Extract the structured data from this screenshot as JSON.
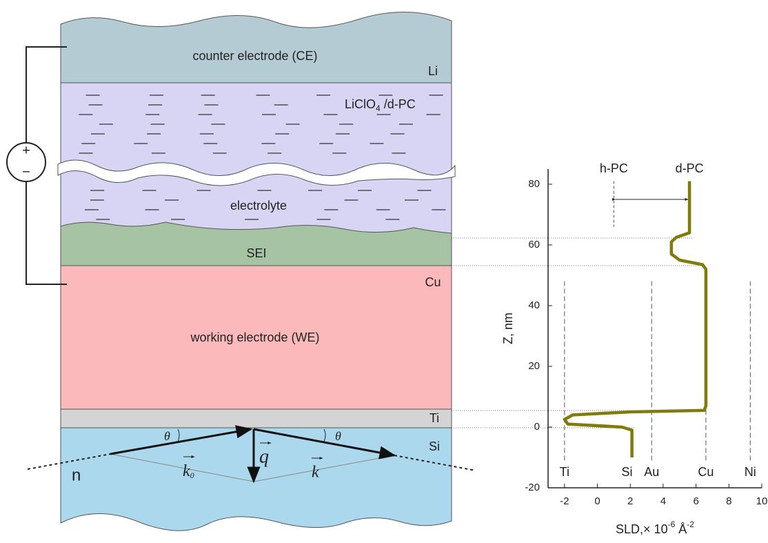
{
  "diagram": {
    "counter_electrode": "counter electrode (CE)",
    "li": "Li",
    "electrolyte_formula": {
      "main": "LiClO",
      "sub": "4",
      "rest": " /d-PC"
    },
    "electrolyte": "electrolyte",
    "sei": "SEI",
    "cu": "Cu",
    "working_electrode": "working electrode (WE)",
    "ti": "Ti",
    "si": "Si",
    "n": "n",
    "theta_left": "θ",
    "theta_right": "θ",
    "plus": "+",
    "minus": "−",
    "k0": {
      "main": "k",
      "sub": "0"
    },
    "q": "q",
    "k": "k"
  },
  "chart_data": {
    "type": "line",
    "xlabel": {
      "main": "SLD,× 10",
      "sup1": "-6",
      "mid": " Å",
      "sup2": "-2"
    },
    "ylabel": "Z, nm",
    "color": "#7f7c0c",
    "x": [
      2.1,
      2.1,
      1.5,
      -1.8,
      -2,
      -1.5,
      2,
      6.5,
      6.6,
      6.6,
      6.4,
      5,
      4.5,
      4.5,
      4.8,
      5.6,
      5.6
    ],
    "values": [
      -10,
      -1,
      0,
      1,
      2.5,
      4,
      5,
      5.5,
      7,
      52,
      53.5,
      55,
      57,
      61,
      62.5,
      64,
      81
    ],
    "xlim": [
      -3,
      10
    ],
    "ylim": [
      -20,
      85
    ],
    "xticks": [
      -2,
      0,
      2,
      4,
      6,
      8,
      10
    ],
    "yticks": [
      -20,
      0,
      20,
      40,
      60,
      80
    ],
    "materials": [
      {
        "label": "Ti",
        "sld": -2,
        "line": true
      },
      {
        "label": "Si",
        "sld": 1.8,
        "line": false
      },
      {
        "label": "Au",
        "sld": 3.3,
        "line": true
      },
      {
        "label": "Cu",
        "sld": 6.6,
        "line": true
      },
      {
        "label": "Ni",
        "sld": 9.3,
        "line": true
      }
    ],
    "solvents": [
      {
        "label": "h-PC",
        "sld": 1.0
      },
      {
        "label": "d-PC",
        "sld": 5.6
      }
    ]
  }
}
